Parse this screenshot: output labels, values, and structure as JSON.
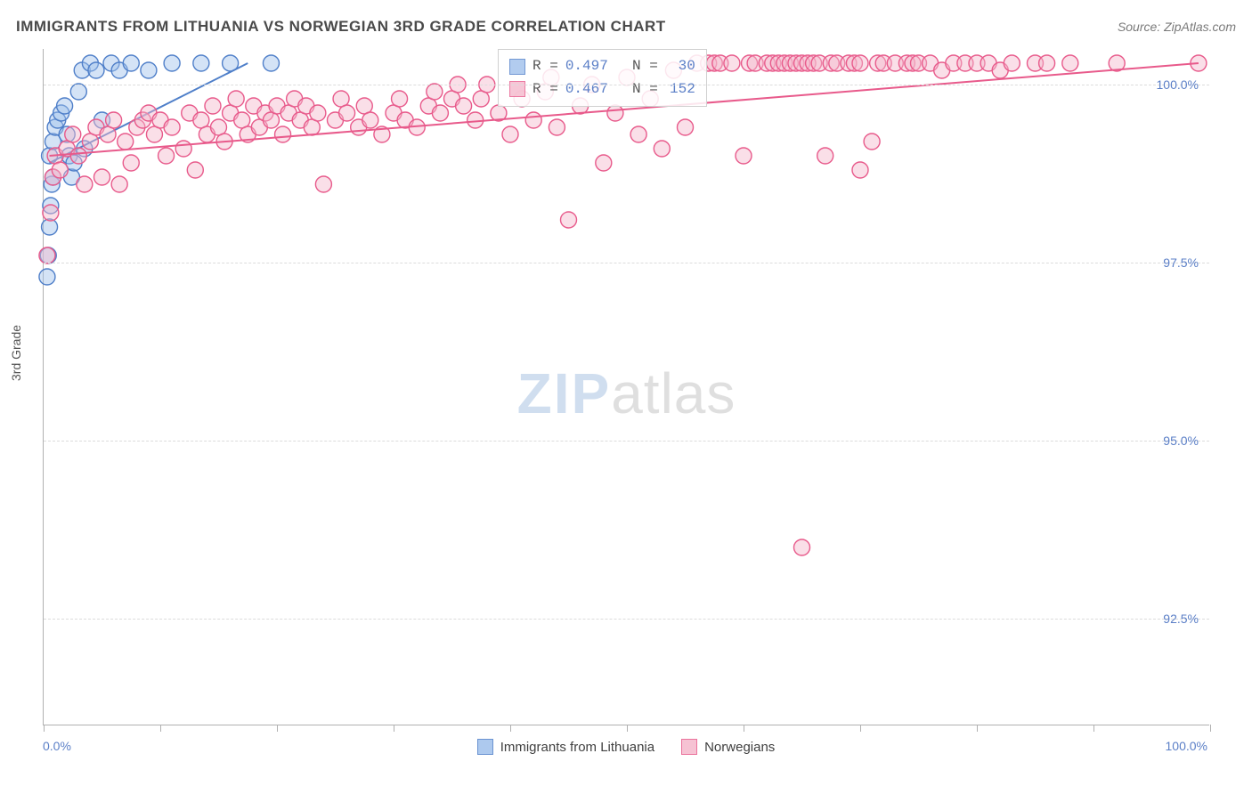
{
  "title": "IMMIGRANTS FROM LITHUANIA VS NORWEGIAN 3RD GRADE CORRELATION CHART",
  "source": "Source: ZipAtlas.com",
  "y_axis_title": "3rd Grade",
  "watermark": {
    "part1": "ZIP",
    "part2": "atlas"
  },
  "chart": {
    "type": "scatter",
    "background_color": "#ffffff",
    "grid_color": "#dcdcdc",
    "axis_color": "#b0b0b0",
    "xlim": [
      0,
      100
    ],
    "ylim": [
      91.0,
      100.5
    ],
    "x_tick_positions": [
      0,
      10,
      20,
      30,
      40,
      50,
      60,
      70,
      80,
      90,
      100
    ],
    "y_ticks": [
      {
        "v": 100.0,
        "label": "100.0%"
      },
      {
        "v": 97.5,
        "label": "97.5%"
      },
      {
        "v": 95.0,
        "label": "95.0%"
      },
      {
        "v": 92.5,
        "label": "92.5%"
      }
    ],
    "x_label_min": "0.0%",
    "x_label_max": "100.0%",
    "marker_radius": 9,
    "marker_stroke_width": 1.4,
    "line_width": 2,
    "series": [
      {
        "id": "lithuania",
        "name": "Immigrants from Lithuania",
        "fill": "#9fc0ec",
        "stroke": "#4f7fc9",
        "fill_opacity": 0.45,
        "R": "0.497",
        "N": "30",
        "trend": {
          "x1": 0.5,
          "y1": 98.9,
          "x2": 17.5,
          "y2": 100.3
        },
        "points": [
          [
            0.3,
            97.3
          ],
          [
            0.4,
            97.6
          ],
          [
            0.5,
            98.0
          ],
          [
            0.6,
            98.3
          ],
          [
            0.7,
            98.6
          ],
          [
            0.8,
            98.7
          ],
          [
            0.5,
            99.0
          ],
          [
            0.8,
            99.2
          ],
          [
            1.0,
            99.4
          ],
          [
            1.2,
            99.5
          ],
          [
            1.5,
            99.6
          ],
          [
            1.8,
            99.7
          ],
          [
            2.0,
            99.3
          ],
          [
            2.2,
            99.0
          ],
          [
            2.4,
            98.7
          ],
          [
            2.6,
            98.9
          ],
          [
            3.0,
            99.9
          ],
          [
            3.3,
            100.2
          ],
          [
            3.5,
            99.1
          ],
          [
            4.0,
            100.3
          ],
          [
            4.5,
            100.2
          ],
          [
            5.0,
            99.5
          ],
          [
            5.8,
            100.3
          ],
          [
            6.5,
            100.2
          ],
          [
            7.5,
            100.3
          ],
          [
            9.0,
            100.2
          ],
          [
            11.0,
            100.3
          ],
          [
            13.5,
            100.3
          ],
          [
            16.0,
            100.3
          ],
          [
            19.5,
            100.3
          ]
        ]
      },
      {
        "id": "norwegians",
        "name": "Norwegians",
        "fill": "#f5b8cc",
        "stroke": "#e85a8b",
        "fill_opacity": 0.45,
        "R": "0.467",
        "N": "152",
        "trend": {
          "x1": 0.5,
          "y1": 99.0,
          "x2": 99.0,
          "y2": 100.3
        },
        "points": [
          [
            0.3,
            97.6
          ],
          [
            0.6,
            98.2
          ],
          [
            0.8,
            98.7
          ],
          [
            1.0,
            99.0
          ],
          [
            1.4,
            98.8
          ],
          [
            2.0,
            99.1
          ],
          [
            2.5,
            99.3
          ],
          [
            3.0,
            99.0
          ],
          [
            3.5,
            98.6
          ],
          [
            4.0,
            99.2
          ],
          [
            4.5,
            99.4
          ],
          [
            5.0,
            98.7
          ],
          [
            5.5,
            99.3
          ],
          [
            6.0,
            99.5
          ],
          [
            6.5,
            98.6
          ],
          [
            7.0,
            99.2
          ],
          [
            7.5,
            98.9
          ],
          [
            8.0,
            99.4
          ],
          [
            8.5,
            99.5
          ],
          [
            9.0,
            99.6
          ],
          [
            9.5,
            99.3
          ],
          [
            10.0,
            99.5
          ],
          [
            10.5,
            99.0
          ],
          [
            11.0,
            99.4
          ],
          [
            12.0,
            99.1
          ],
          [
            12.5,
            99.6
          ],
          [
            13.0,
            98.8
          ],
          [
            13.5,
            99.5
          ],
          [
            14.0,
            99.3
          ],
          [
            14.5,
            99.7
          ],
          [
            15.0,
            99.4
          ],
          [
            15.5,
            99.2
          ],
          [
            16.0,
            99.6
          ],
          [
            16.5,
            99.8
          ],
          [
            17.0,
            99.5
          ],
          [
            17.5,
            99.3
          ],
          [
            18.0,
            99.7
          ],
          [
            18.5,
            99.4
          ],
          [
            19.0,
            99.6
          ],
          [
            19.5,
            99.5
          ],
          [
            20.0,
            99.7
          ],
          [
            20.5,
            99.3
          ],
          [
            21.0,
            99.6
          ],
          [
            21.5,
            99.8
          ],
          [
            22.0,
            99.5
          ],
          [
            22.5,
            99.7
          ],
          [
            23.0,
            99.4
          ],
          [
            23.5,
            99.6
          ],
          [
            24.0,
            98.6
          ],
          [
            25.0,
            99.5
          ],
          [
            25.5,
            99.8
          ],
          [
            26.0,
            99.6
          ],
          [
            27.0,
            99.4
          ],
          [
            27.5,
            99.7
          ],
          [
            28.0,
            99.5
          ],
          [
            29.0,
            99.3
          ],
          [
            30.0,
            99.6
          ],
          [
            30.5,
            99.8
          ],
          [
            31.0,
            99.5
          ],
          [
            32.0,
            99.4
          ],
          [
            33.0,
            99.7
          ],
          [
            33.5,
            99.9
          ],
          [
            34.0,
            99.6
          ],
          [
            35.0,
            99.8
          ],
          [
            35.5,
            100.0
          ],
          [
            36.0,
            99.7
          ],
          [
            37.0,
            99.5
          ],
          [
            37.5,
            99.8
          ],
          [
            38.0,
            100.0
          ],
          [
            39.0,
            99.6
          ],
          [
            40.0,
            99.3
          ],
          [
            41.0,
            99.8
          ],
          [
            42.0,
            99.5
          ],
          [
            43.0,
            99.9
          ],
          [
            43.5,
            100.1
          ],
          [
            44.0,
            99.4
          ],
          [
            45.0,
            98.1
          ],
          [
            46.0,
            99.7
          ],
          [
            47.0,
            100.0
          ],
          [
            48.0,
            98.9
          ],
          [
            49.0,
            99.6
          ],
          [
            50.0,
            100.1
          ],
          [
            51.0,
            99.3
          ],
          [
            52.0,
            99.8
          ],
          [
            53.0,
            99.1
          ],
          [
            54.0,
            100.2
          ],
          [
            55.0,
            99.4
          ],
          [
            56.0,
            100.3
          ],
          [
            57.0,
            100.3
          ],
          [
            57.5,
            100.3
          ],
          [
            58.0,
            100.3
          ],
          [
            59.0,
            100.3
          ],
          [
            60.0,
            99.0
          ],
          [
            60.5,
            100.3
          ],
          [
            61.0,
            100.3
          ],
          [
            62.0,
            100.3
          ],
          [
            62.5,
            100.3
          ],
          [
            63.0,
            100.3
          ],
          [
            63.5,
            100.3
          ],
          [
            64.0,
            100.3
          ],
          [
            64.5,
            100.3
          ],
          [
            65.0,
            100.3
          ],
          [
            65.5,
            100.3
          ],
          [
            66.0,
            100.3
          ],
          [
            66.5,
            100.3
          ],
          [
            67.0,
            99.0
          ],
          [
            67.5,
            100.3
          ],
          [
            68.0,
            100.3
          ],
          [
            69.0,
            100.3
          ],
          [
            69.5,
            100.3
          ],
          [
            70.0,
            100.3
          ],
          [
            71.0,
            99.2
          ],
          [
            71.5,
            100.3
          ],
          [
            72.0,
            100.3
          ],
          [
            73.0,
            100.3
          ],
          [
            74.0,
            100.3
          ],
          [
            74.5,
            100.3
          ],
          [
            75.0,
            100.3
          ],
          [
            76.0,
            100.3
          ],
          [
            77.0,
            100.2
          ],
          [
            78.0,
            100.3
          ],
          [
            79.0,
            100.3
          ],
          [
            80.0,
            100.3
          ],
          [
            81.0,
            100.3
          ],
          [
            82.0,
            100.2
          ],
          [
            83.0,
            100.3
          ],
          [
            85.0,
            100.3
          ],
          [
            86.0,
            100.3
          ],
          [
            88.0,
            100.3
          ],
          [
            92.0,
            100.3
          ],
          [
            99.0,
            100.3
          ],
          [
            65.0,
            93.5
          ],
          [
            70.0,
            98.8
          ]
        ]
      }
    ]
  },
  "legend": [
    {
      "label": "Immigrants from Lithuania",
      "fill": "#9fc0ec",
      "stroke": "#4f7fc9"
    },
    {
      "label": "Norwegians",
      "fill": "#f5b8cc",
      "stroke": "#e85a8b"
    }
  ],
  "label_color": "#5b7fc7"
}
